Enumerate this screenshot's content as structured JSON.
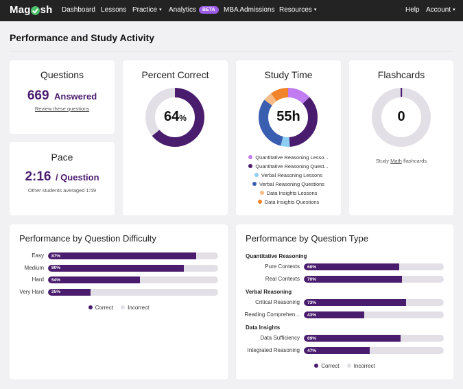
{
  "nav": {
    "logo_left": "Mag",
    "logo_right": "sh",
    "items": [
      {
        "label": "Dashboard"
      },
      {
        "label": "Lessons"
      },
      {
        "label": "Practice"
      },
      {
        "label": "Analytics"
      },
      {
        "label": "MBA Admissions"
      },
      {
        "label": "Resources"
      },
      {
        "label": "Help"
      },
      {
        "label": "Account"
      }
    ],
    "beta_badge": "BETA",
    "caret": "▾"
  },
  "page": {
    "title": "Performance and Study Activity"
  },
  "questions": {
    "title": "Questions",
    "count": "669",
    "count_suffix": "Answered",
    "link": "Review these questions"
  },
  "pace": {
    "title": "Pace",
    "value": "2:16",
    "suffix": "/ Question",
    "note": "Other students averaged 1:59"
  },
  "percent_correct": {
    "title": "Percent Correct",
    "value": "64",
    "unit": "%",
    "fraction": 0.64,
    "colors": {
      "fill": "#4a1c6e",
      "track": "#e2dfe6"
    }
  },
  "study_time": {
    "title": "Study Time",
    "value": "55h",
    "segments": [
      {
        "name": "Quantitative Reasoning Lesso...",
        "color": "#c07cf0",
        "share": 0.13
      },
      {
        "name": "Quantitative Reasoning Quest...",
        "color": "#4a1c6e",
        "share": 0.36
      },
      {
        "name": "Verbal Reasoning Lessons",
        "color": "#8ccff3",
        "share": 0.05
      },
      {
        "name": "Verbal Reasoning Questions",
        "color": "#3a5eb0",
        "share": 0.31
      },
      {
        "name": "Data Insights Lessons",
        "color": "#f6bb86",
        "share": 0.05
      },
      {
        "name": "Data Insights Questions",
        "color": "#f1842a",
        "share": 0.1
      }
    ]
  },
  "flashcards": {
    "title": "Flashcards",
    "value": "0",
    "note_pre": "Study",
    "note_link": "Math",
    "note_post": "flashcards"
  },
  "difficulty": {
    "title": "Performance by Question Difficulty",
    "rows": [
      {
        "label": "Easy",
        "pct_label": "87%",
        "pct": 87
      },
      {
        "label": "Medium",
        "pct_label": "80%",
        "pct": 80
      },
      {
        "label": "Hard",
        "pct_label": "54%",
        "pct": 54
      },
      {
        "label": "Very Hard",
        "pct_label": "25%",
        "pct": 25
      }
    ],
    "legend": {
      "correct": "Correct",
      "incorrect": "Incorrect"
    }
  },
  "qtype": {
    "title": "Performance by Question Type",
    "groups": [
      {
        "label": "Quantitative Reasoning",
        "rows": [
          {
            "label": "Pure Contexts",
            "pct_label": "68%",
            "pct": 68
          },
          {
            "label": "Real Contexts",
            "pct_label": "70%",
            "pct": 70
          }
        ]
      },
      {
        "label": "Verbal Reasoning",
        "rows": [
          {
            "label": "Critical Reasoning",
            "pct_label": "73%",
            "pct": 73
          },
          {
            "label": "Reading Comprehen...",
            "pct_label": "43%",
            "pct": 43
          }
        ]
      },
      {
        "label": "Data Insights",
        "rows": [
          {
            "label": "Data Sufficiency",
            "pct_label": "69%",
            "pct": 69
          },
          {
            "label": "Integrated Reasoning",
            "pct_label": "47%",
            "pct": 47
          }
        ]
      }
    ],
    "legend": {
      "correct": "Correct",
      "incorrect": "Incorrect"
    }
  },
  "colors": {
    "accent": "#4a1c6e",
    "track": "#e2dfe6",
    "incorrect_dot": "#e2dfe6",
    "nav_bg": "#232323",
    "brand_green": "#4cbf6b",
    "beta": "#9b5de5"
  }
}
